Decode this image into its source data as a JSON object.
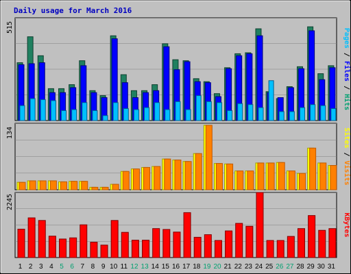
{
  "chart_data": [
    {
      "type": "bar",
      "panel": "hits-files-pages",
      "title": "Daily usage for March 2016",
      "ymax_label": "515",
      "ylim": [
        0,
        515
      ],
      "side_label": [
        "Pages",
        "Files",
        "Hits"
      ],
      "side_colors": [
        "#00c0ff",
        "#0000ff",
        "#00a070"
      ],
      "categories": [
        "1",
        "2",
        "3",
        "4",
        "5",
        "6",
        "7",
        "8",
        "9",
        "10",
        "11",
        "12",
        "13",
        "14",
        "15",
        "16",
        "17",
        "18",
        "19",
        "20",
        "21",
        "22",
        "23",
        "24",
        "25",
        "26",
        "27",
        "28",
        "29",
        "30",
        "31"
      ],
      "weekend_days": [
        5,
        6,
        12,
        13,
        19,
        20,
        26,
        27
      ],
      "series": [
        {
          "name": "Hits",
          "color": "#208060",
          "values": [
            290,
            420,
            325,
            160,
            160,
            180,
            300,
            150,
            125,
            425,
            230,
            150,
            150,
            180,
            385,
            305,
            300,
            210,
            195,
            135,
            265,
            335,
            340,
            460,
            145,
            110,
            170,
            270,
            470,
            235,
            275
          ]
        },
        {
          "name": "Files",
          "color": "#0000ff",
          "values": [
            280,
            285,
            290,
            140,
            140,
            165,
            275,
            140,
            115,
            410,
            190,
            115,
            140,
            150,
            370,
            255,
            295,
            195,
            190,
            120,
            260,
            325,
            335,
            425,
            140,
            115,
            165,
            260,
            450,
            205,
            265
          ]
        },
        {
          "name": "Pages",
          "color": "#00c0ff",
          "values": [
            75,
            110,
            105,
            100,
            50,
            55,
            90,
            50,
            25,
            90,
            60,
            55,
            65,
            90,
            55,
            95,
            55,
            125,
            95,
            90,
            50,
            85,
            80,
            65,
            200,
            45,
            45,
            65,
            80,
            75,
            60
          ]
        }
      ]
    },
    {
      "type": "bar",
      "panel": "visits-sites",
      "ymax_label": "134",
      "ylim": [
        0,
        134
      ],
      "side_label": [
        "Sites",
        "Visits"
      ],
      "side_colors": [
        "#ffff00",
        "#ff8000"
      ],
      "series": [
        {
          "name": "Visits",
          "values": [
            15,
            18,
            18,
            18,
            16,
            17,
            17,
            5,
            5,
            11,
            37,
            42,
            45,
            47,
            62,
            60,
            57,
            73,
            130,
            53,
            52,
            38,
            38,
            54,
            54,
            55,
            38,
            33,
            84,
            54,
            49
          ]
        },
        {
          "name": "Sites",
          "values": [
            15,
            18,
            18,
            18,
            16,
            17,
            17,
            5,
            5,
            11,
            37,
            42,
            45,
            47,
            62,
            60,
            57,
            73,
            130,
            53,
            52,
            38,
            38,
            54,
            54,
            55,
            38,
            33,
            84,
            54,
            49
          ]
        }
      ]
    },
    {
      "type": "bar",
      "panel": "kbytes",
      "ymax_label": "2245",
      "ylim": [
        0,
        2245
      ],
      "side_label": [
        "KBytes"
      ],
      "side_colors": [
        "#ff0000"
      ],
      "series": [
        {
          "name": "KBytes",
          "color": "#ff0000",
          "values": [
            980,
            1370,
            1280,
            740,
            640,
            680,
            1130,
            530,
            430,
            1280,
            870,
            600,
            600,
            1000,
            970,
            880,
            1550,
            700,
            790,
            590,
            920,
            1180,
            1080,
            2245,
            590,
            590,
            730,
            1000,
            1450,
            940,
            1000
          ]
        }
      ]
    }
  ],
  "colors": {
    "background": "#c0c0c0",
    "plot_bg": "#c0c0c0",
    "title": "#0000c0",
    "weekday_label": "#000000",
    "weekend_label": "#00a070",
    "visits_fill": "#ff8000",
    "visits_stroke": "#c05800",
    "sites_fill": "#ffff00",
    "sites_stroke": "#a0a000",
    "hits_stroke": "#104030",
    "files_stroke": "#000080",
    "pages_stroke": "#006090",
    "kbytes_stroke": "#800000"
  }
}
